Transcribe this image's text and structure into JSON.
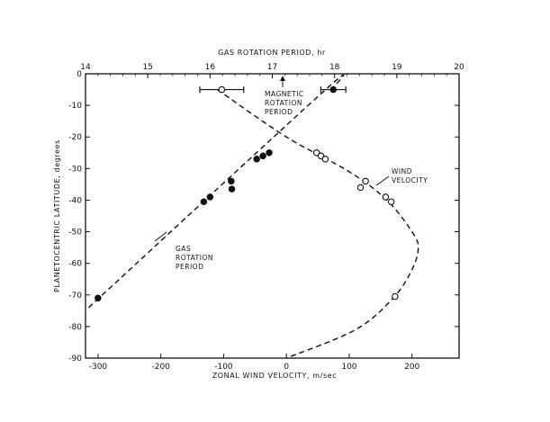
{
  "chart_data": {
    "type": "scatter",
    "title": "",
    "bottom_axis": {
      "label": "ZONAL WIND VELOCITY, m/sec",
      "range": [
        -320,
        275
      ],
      "ticks": [
        -300,
        -200,
        -100,
        0,
        100,
        200
      ],
      "tick_labels": [
        "-300",
        "-200",
        "-100",
        "0",
        "100",
        "200"
      ]
    },
    "top_axis": {
      "label": "GAS ROTATION PERIOD, hr",
      "range": [
        14,
        20
      ],
      "ticks": [
        14,
        15,
        16,
        17,
        18,
        19,
        20
      ],
      "tick_labels": [
        "14",
        "15",
        "16",
        "17",
        "18",
        "19",
        "20"
      ]
    },
    "left_axis": {
      "label": "PLANETOCENTRIC LATITUDE, degrees",
      "range": [
        -90,
        0
      ],
      "ticks": [
        0,
        -10,
        -20,
        -30,
        -40,
        -50,
        -60,
        -70,
        -80,
        -90
      ],
      "tick_labels": [
        "0",
        "-10",
        "-20",
        "-30",
        "-40",
        "-50",
        "-60",
        "-70",
        "-80",
        "-90"
      ]
    },
    "grid": false,
    "series": [
      {
        "name": "GAS ROTATION PERIOD",
        "marker": "filled-circle",
        "axis": "top",
        "curve": [
          [
            14.05,
            -74
          ],
          [
            17.8,
            -6
          ],
          [
            18.0,
            -4
          ]
        ],
        "points": [
          {
            "x": 14.2,
            "y": -71
          },
          {
            "x": 15.9,
            "y": -40.5
          },
          {
            "x": 16.0,
            "y": -39
          },
          {
            "x": 16.34,
            "y": -34
          },
          {
            "x": 16.35,
            "y": -36.5
          },
          {
            "x": 16.75,
            "y": -27
          },
          {
            "x": 16.85,
            "y": -26
          },
          {
            "x": 16.95,
            "y": -25
          },
          {
            "x": 17.98,
            "y": -5,
            "xerr": 0.2
          }
        ]
      },
      {
        "name": "WIND VELOCITY",
        "marker": "open-circle",
        "axis": "bottom",
        "curve": [
          [
            -110,
            -5
          ],
          [
            0,
            -20
          ],
          [
            100,
            -31
          ],
          [
            160,
            -40
          ],
          [
            200,
            -50
          ],
          [
            210,
            -55
          ],
          [
            200,
            -62
          ],
          [
            170,
            -71
          ],
          [
            110,
            -81
          ],
          [
            0,
            -90
          ]
        ],
        "points": [
          {
            "x": -103,
            "y": -5,
            "xerr": 35
          },
          {
            "x": 48,
            "y": -25
          },
          {
            "x": 55,
            "y": -26
          },
          {
            "x": 62,
            "y": -27
          },
          {
            "x": 118,
            "y": -36
          },
          {
            "x": 126,
            "y": -34
          },
          {
            "x": 158,
            "y": -39
          },
          {
            "x": 167,
            "y": -40.5
          },
          {
            "x": 173,
            "y": -70.5
          }
        ]
      }
    ],
    "annotations": [
      {
        "text": [
          "MAGNETIC",
          "ROTATION",
          "PERIOD"
        ],
        "at_top_axis_value": 17.2
      },
      {
        "text": [
          "WIND",
          "VELOCITY"
        ]
      },
      {
        "text": [
          "GAS",
          "ROTATION",
          "PERIOD"
        ]
      }
    ]
  }
}
